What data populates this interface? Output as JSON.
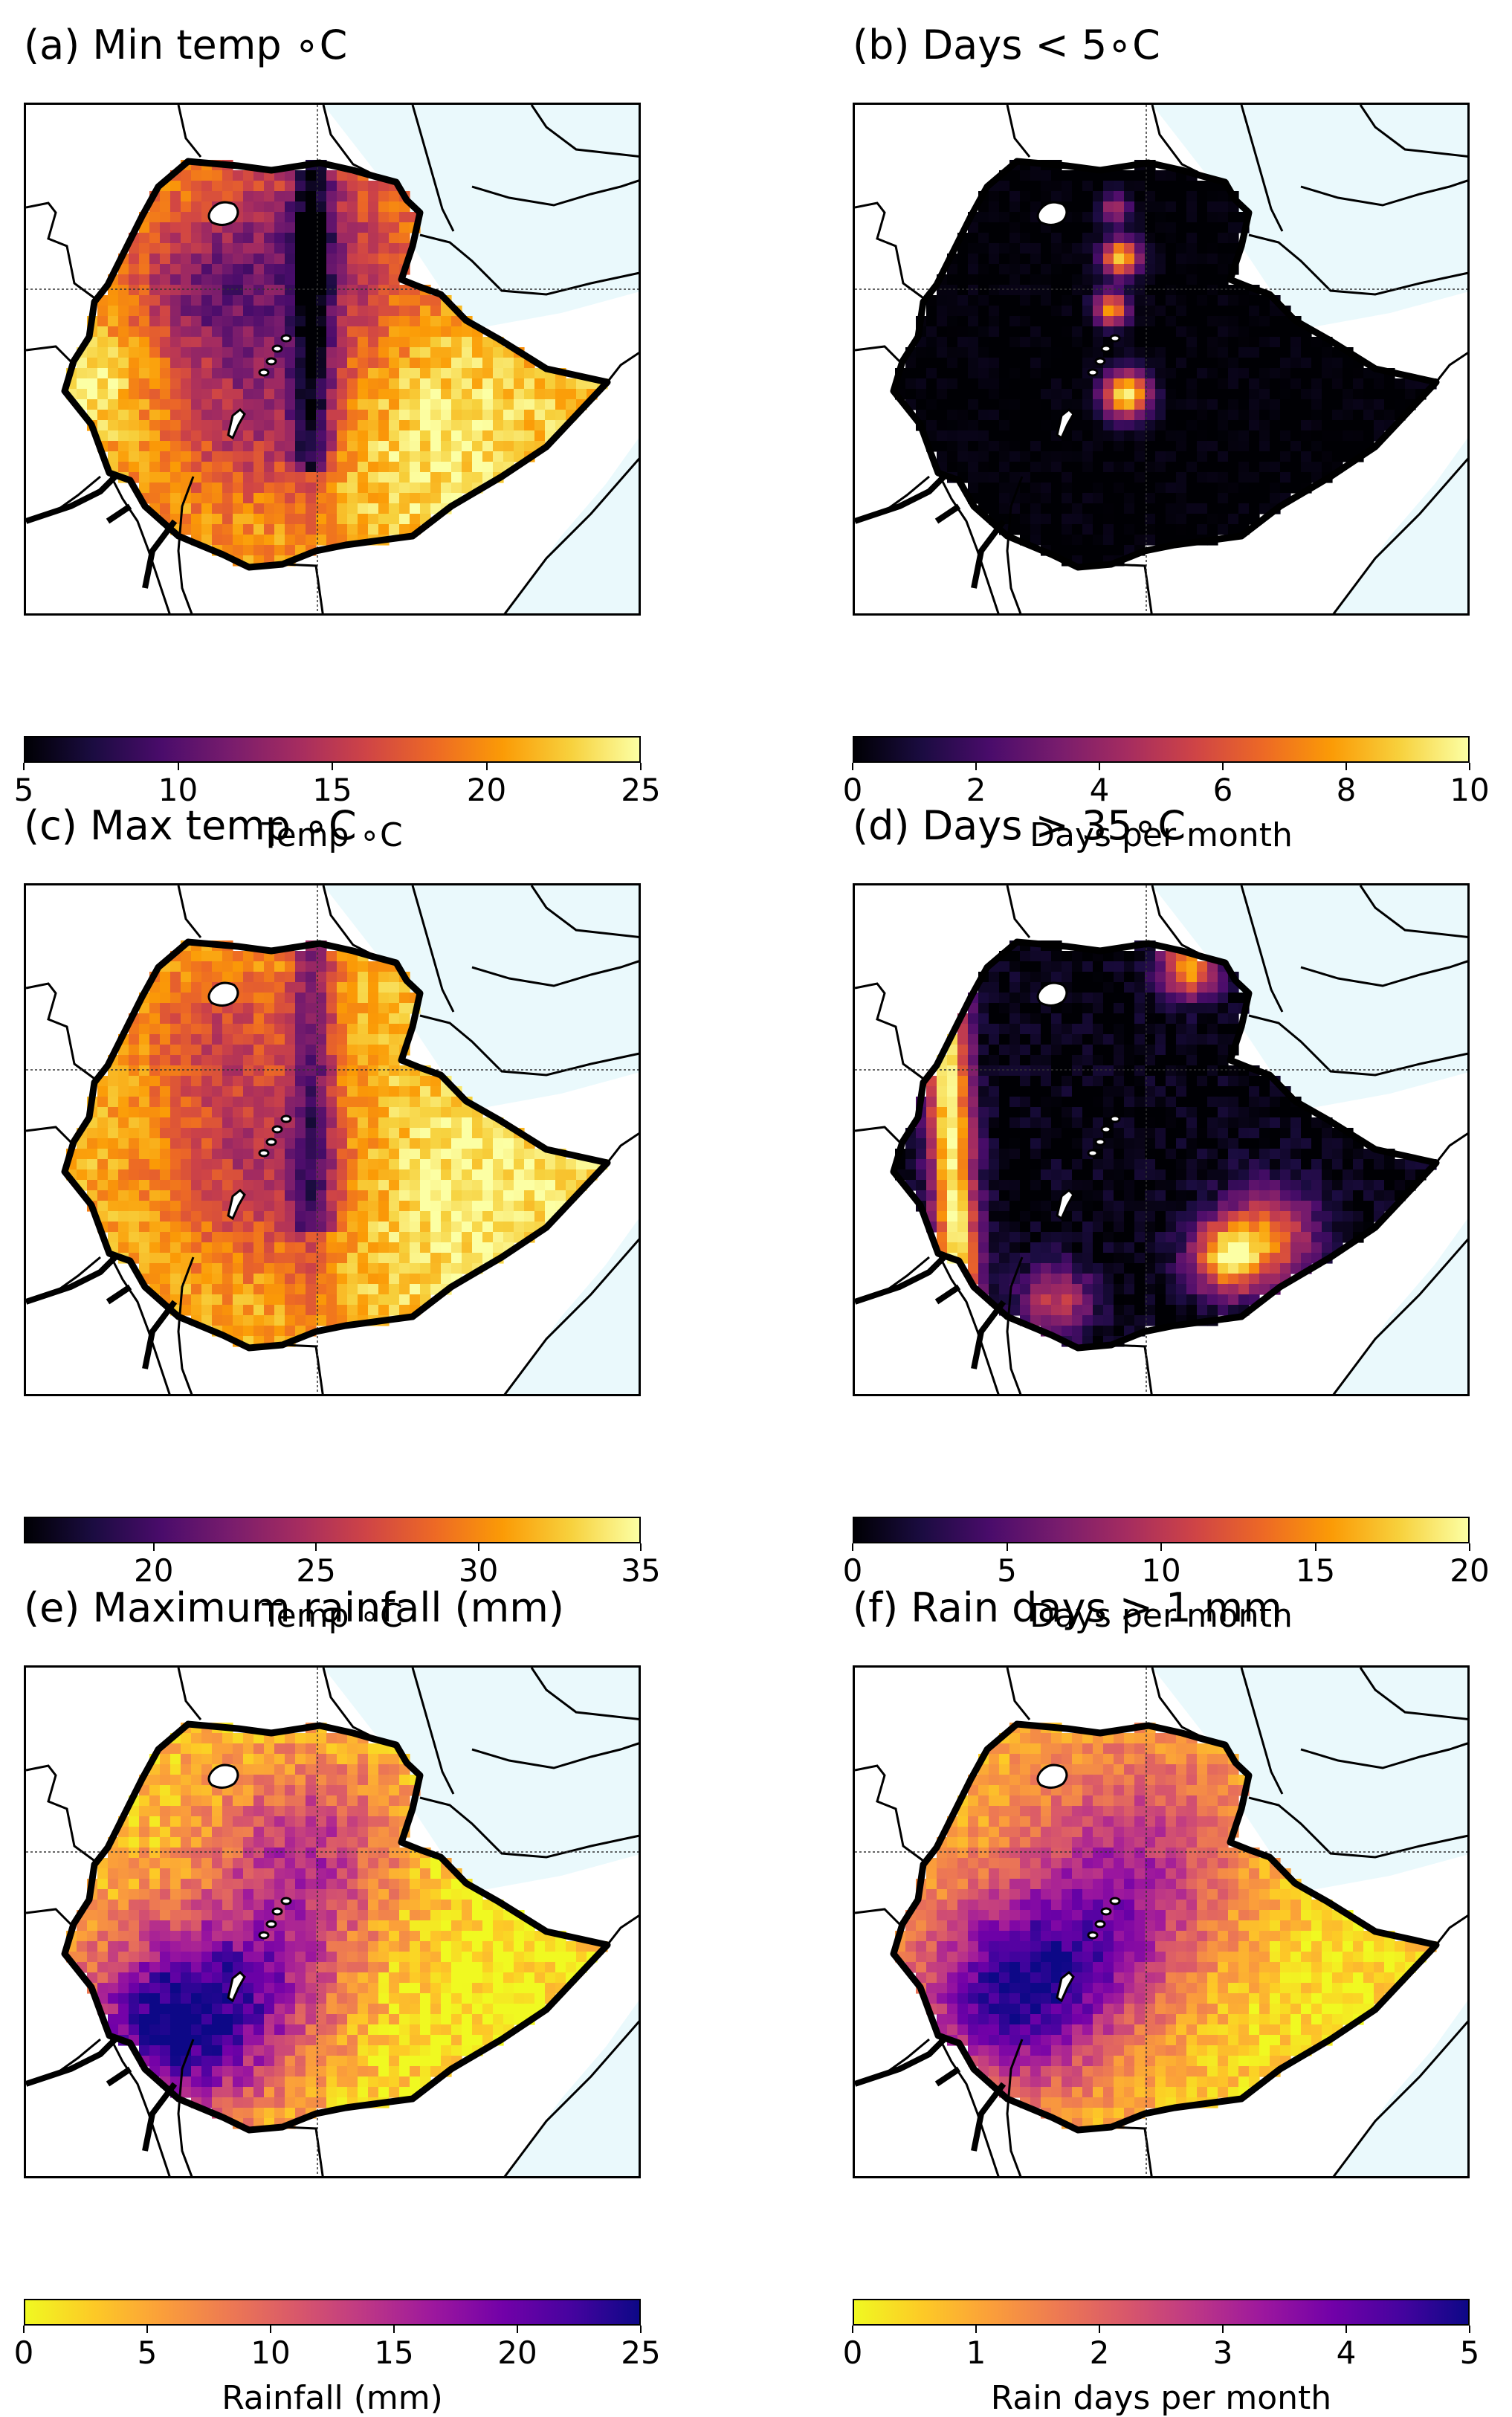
{
  "panels": [
    {
      "id": "a",
      "title": "(a) Min temp ∘C",
      "cmap": "inferno",
      "field": "min_temp",
      "colorbar": {
        "ticks": [
          "5",
          "10",
          "15",
          "20",
          "25"
        ],
        "range": [
          5,
          25
        ],
        "label": "Temp ∘C"
      }
    },
    {
      "id": "b",
      "title": "(b) Days < 5∘C",
      "cmap": "inferno",
      "field": "cold_days",
      "colorbar": {
        "ticks": [
          "0",
          "2",
          "4",
          "6",
          "8",
          "10"
        ],
        "range": [
          0,
          10
        ],
        "label": "Days per month"
      }
    },
    {
      "id": "c",
      "title": "(c) Max temp ∘C",
      "cmap": "inferno",
      "field": "max_temp",
      "colorbar": {
        "ticks": [
          "20",
          "25",
          "30",
          "35"
        ],
        "range": [
          16,
          35
        ],
        "label": "Temp ∘C"
      }
    },
    {
      "id": "d",
      "title": "(d) Days > 35∘C",
      "cmap": "inferno",
      "field": "hot_days",
      "colorbar": {
        "ticks": [
          "0",
          "5",
          "10",
          "15",
          "20"
        ],
        "range": [
          0,
          20
        ],
        "label": "Days per month"
      }
    },
    {
      "id": "e",
      "title": "(e) Maximum rainfall (mm)",
      "cmap": "plasma_r",
      "field": "max_rain",
      "colorbar": {
        "ticks": [
          "0",
          "5",
          "10",
          "15",
          "20",
          "25"
        ],
        "range": [
          0,
          25
        ],
        "label": "Rainfall (mm)"
      }
    },
    {
      "id": "f",
      "title": "(f) Rain days > 1 mm",
      "cmap": "plasma_r",
      "field": "rain_days",
      "colorbar": {
        "ticks": [
          "0",
          "1",
          "2",
          "3",
          "4",
          "5"
        ],
        "range": [
          0,
          5
        ],
        "label": "Rain days per month"
      }
    }
  ],
  "colors": {
    "sea": "#eaf9fc",
    "border": "#000000",
    "inferno": [
      "#000004",
      "#1b0c41",
      "#4a0c6b",
      "#781c6d",
      "#a52c60",
      "#cf4446",
      "#ed6925",
      "#fb9b06",
      "#f7d13d",
      "#fcffa4"
    ],
    "plasma_r": [
      "#f0f921",
      "#fdca26",
      "#fb9f3a",
      "#ed7953",
      "#d8576b",
      "#bd3786",
      "#9c179e",
      "#7201a8",
      "#46039f",
      "#0d0887"
    ]
  }
}
